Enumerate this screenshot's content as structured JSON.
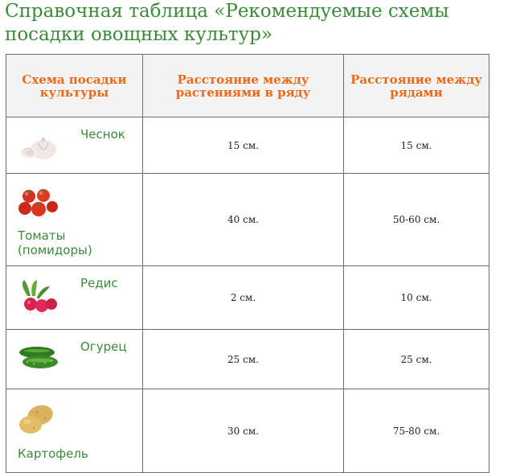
{
  "title": "Справочная таблица «Рекомендуемые схемы посадки овощных культур»",
  "table": {
    "headers": {
      "crop": "Схема посадки культуры",
      "in_row": "Расстояние между растениями в ряду",
      "between_rows": "Расстояние между рядами"
    },
    "rows": [
      {
        "icon": "garlic-icon",
        "name": "Чеснок",
        "in_row": "15 см.",
        "between_rows": "15 см."
      },
      {
        "icon": "tomato-icon",
        "name": "Томаты (помидоры)",
        "in_row": "40 см.",
        "between_rows": "50-60 см."
      },
      {
        "icon": "radish-icon",
        "name": "Редис",
        "in_row": "2 см.",
        "between_rows": "10 см."
      },
      {
        "icon": "cucumber-icon",
        "name": "Огурец",
        "in_row": "25 см.",
        "between_rows": "25 см."
      },
      {
        "icon": "potato-icon",
        "name": "Картофель",
        "in_row": "30 см.",
        "between_rows": "75-80 см."
      }
    ]
  },
  "colors": {
    "title_green": "#3a8a3a",
    "header_orange": "#e86a1a",
    "header_bg": "#f3f3f3",
    "border": "#6b6b6b"
  }
}
